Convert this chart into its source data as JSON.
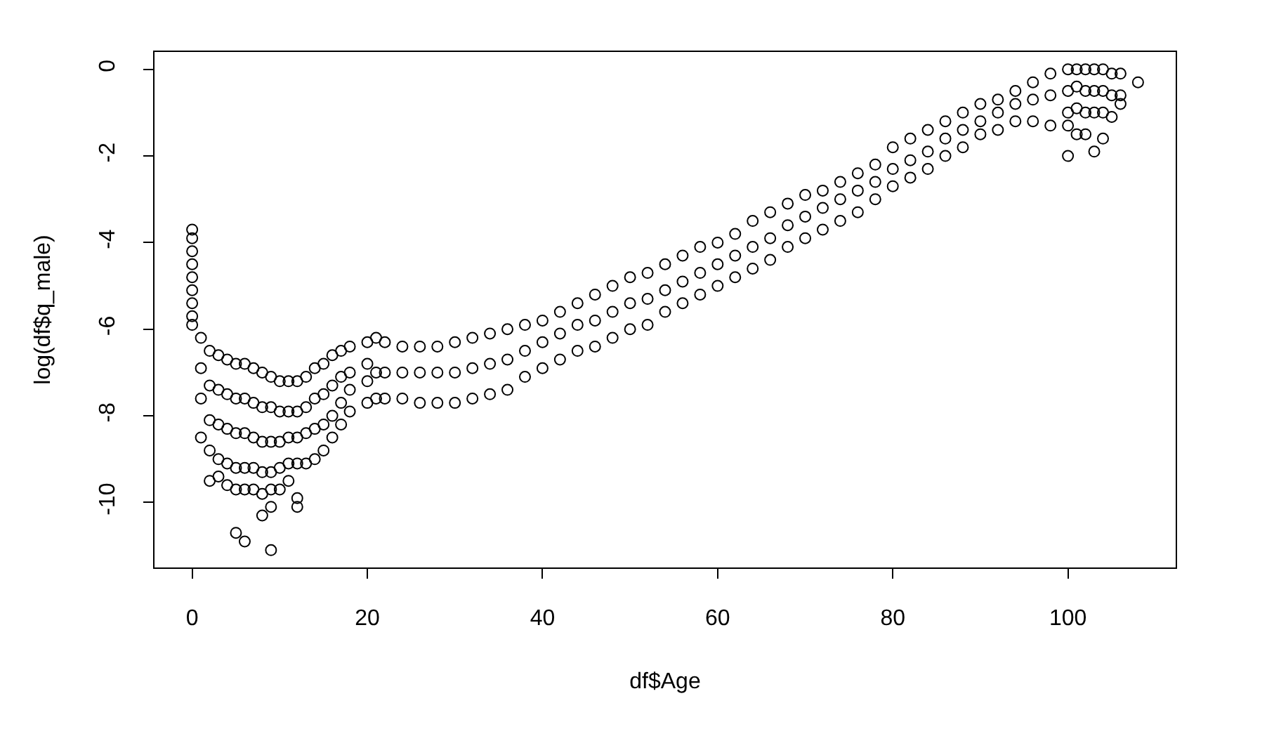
{
  "chart_data": {
    "type": "scatter",
    "xlabel": "df$Age",
    "ylabel": "log(df$q_male)",
    "color": "#000000",
    "marker": "circle",
    "xlim": [
      -4.3,
      112.3
    ],
    "ylim": [
      -11.5,
      0.4
    ],
    "xticks": [
      0,
      20,
      40,
      60,
      80,
      100
    ],
    "yticks": [
      0,
      -2,
      -4,
      -6,
      -8,
      -10
    ],
    "x": [
      0,
      0,
      0,
      0,
      0,
      0,
      0,
      0,
      0,
      1,
      1,
      1,
      1,
      2,
      2,
      2,
      2,
      2,
      3,
      3,
      3,
      3,
      3,
      4,
      4,
      4,
      4,
      4,
      5,
      5,
      5,
      5,
      5,
      5,
      6,
      6,
      6,
      6,
      6,
      6,
      7,
      7,
      7,
      7,
      7,
      8,
      8,
      8,
      8,
      8,
      8,
      9,
      9,
      9,
      9,
      9,
      9,
      9,
      10,
      10,
      10,
      10,
      10,
      11,
      11,
      11,
      11,
      11,
      12,
      12,
      12,
      12,
      12,
      12,
      13,
      13,
      13,
      13,
      14,
      14,
      14,
      14,
      15,
      15,
      15,
      15,
      16,
      16,
      16,
      16,
      17,
      17,
      17,
      17,
      18,
      18,
      18,
      18,
      20,
      20,
      20,
      20,
      21,
      21,
      21,
      22,
      22,
      22,
      24,
      24,
      24,
      26,
      26,
      26,
      28,
      28,
      28,
      30,
      30,
      30,
      32,
      32,
      32,
      34,
      34,
      34,
      36,
      36,
      36,
      38,
      38,
      38,
      40,
      40,
      40,
      42,
      42,
      42,
      44,
      44,
      44,
      46,
      46,
      46,
      48,
      48,
      48,
      50,
      50,
      50,
      52,
      52,
      52,
      54,
      54,
      54,
      56,
      56,
      56,
      58,
      58,
      58,
      60,
      60,
      60,
      62,
      62,
      62,
      64,
      64,
      64,
      66,
      66,
      66,
      68,
      68,
      68,
      70,
      70,
      70,
      72,
      72,
      72,
      74,
      74,
      74,
      76,
      76,
      76,
      78,
      78,
      78,
      80,
      80,
      80,
      82,
      82,
      82,
      84,
      84,
      84,
      86,
      86,
      86,
      88,
      88,
      88,
      90,
      90,
      90,
      92,
      92,
      92,
      94,
      94,
      94,
      96,
      96,
      96,
      98,
      98,
      98,
      100,
      100,
      100,
      100,
      100,
      101,
      101,
      101,
      101,
      102,
      102,
      102,
      102,
      103,
      103,
      103,
      103,
      104,
      104,
      104,
      104,
      105,
      105,
      105,
      106,
      106,
      106,
      108
    ],
    "values": [
      -3.7,
      -3.9,
      -4.2,
      -4.5,
      -4.8,
      -5.1,
      -5.4,
      -5.7,
      -5.9,
      -6.2,
      -6.9,
      -7.6,
      -8.5,
      -6.5,
      -7.3,
      -8.1,
      -8.8,
      -9.5,
      -6.6,
      -7.4,
      -8.2,
      -9.0,
      -9.4,
      -6.7,
      -7.5,
      -8.3,
      -9.1,
      -9.6,
      -6.8,
      -7.6,
      -8.4,
      -9.2,
      -9.7,
      -10.7,
      -6.8,
      -7.6,
      -8.4,
      -9.2,
      -9.7,
      -10.9,
      -6.9,
      -7.7,
      -8.5,
      -9.2,
      -9.7,
      -7.0,
      -7.8,
      -8.6,
      -9.3,
      -9.8,
      -10.3,
      -7.1,
      -7.8,
      -8.6,
      -9.3,
      -9.7,
      -10.1,
      -11.1,
      -7.2,
      -7.9,
      -8.6,
      -9.2,
      -9.7,
      -7.2,
      -7.9,
      -8.5,
      -9.1,
      -9.5,
      -7.2,
      -7.9,
      -8.5,
      -9.1,
      -9.9,
      -10.1,
      -7.1,
      -7.8,
      -8.4,
      -9.1,
      -6.9,
      -7.6,
      -8.3,
      -9.0,
      -6.8,
      -7.5,
      -8.2,
      -8.8,
      -6.6,
      -7.3,
      -8.0,
      -8.5,
      -6.5,
      -7.1,
      -7.7,
      -8.2,
      -6.4,
      -7.0,
      -7.4,
      -7.9,
      -6.3,
      -6.8,
      -7.2,
      -7.7,
      -6.2,
      -7.0,
      -7.6,
      -6.3,
      -7.0,
      -7.6,
      -6.4,
      -7.0,
      -7.6,
      -6.4,
      -7.0,
      -7.7,
      -6.4,
      -7.0,
      -7.7,
      -6.3,
      -7.0,
      -7.7,
      -6.2,
      -6.9,
      -7.6,
      -6.1,
      -6.8,
      -7.5,
      -6.0,
      -6.7,
      -7.4,
      -5.9,
      -6.5,
      -7.1,
      -5.8,
      -6.3,
      -6.9,
      -5.6,
      -6.1,
      -6.7,
      -5.4,
      -5.9,
      -6.5,
      -5.2,
      -5.8,
      -6.4,
      -5.0,
      -5.6,
      -6.2,
      -4.8,
      -5.4,
      -6.0,
      -4.7,
      -5.3,
      -5.9,
      -4.5,
      -5.1,
      -5.6,
      -4.3,
      -4.9,
      -5.4,
      -4.1,
      -4.7,
      -5.2,
      -4.0,
      -4.5,
      -5.0,
      -3.8,
      -4.3,
      -4.8,
      -3.5,
      -4.1,
      -4.6,
      -3.3,
      -3.9,
      -4.4,
      -3.1,
      -3.6,
      -4.1,
      -2.9,
      -3.4,
      -3.9,
      -2.8,
      -3.2,
      -3.7,
      -2.6,
      -3.0,
      -3.5,
      -2.4,
      -2.8,
      -3.3,
      -2.2,
      -2.6,
      -3.0,
      -1.8,
      -2.3,
      -2.7,
      -1.6,
      -2.1,
      -2.5,
      -1.4,
      -1.9,
      -2.3,
      -1.2,
      -1.6,
      -2.0,
      -1.0,
      -1.4,
      -1.8,
      -0.8,
      -1.2,
      -1.5,
      -0.7,
      -1.0,
      -1.4,
      -0.5,
      -0.8,
      -1.2,
      -0.3,
      -0.7,
      -1.2,
      -0.1,
      -0.6,
      -1.3,
      0.0,
      -0.5,
      -1.0,
      -1.3,
      -2.0,
      0.0,
      -0.4,
      -0.9,
      -1.5,
      0.0,
      -0.5,
      -1.0,
      -1.5,
      0.0,
      -0.5,
      -1.0,
      -1.9,
      0.0,
      -0.5,
      -1.0,
      -1.6,
      -0.1,
      -0.6,
      -1.1,
      -0.1,
      -0.6,
      -0.8,
      -0.3
    ]
  }
}
